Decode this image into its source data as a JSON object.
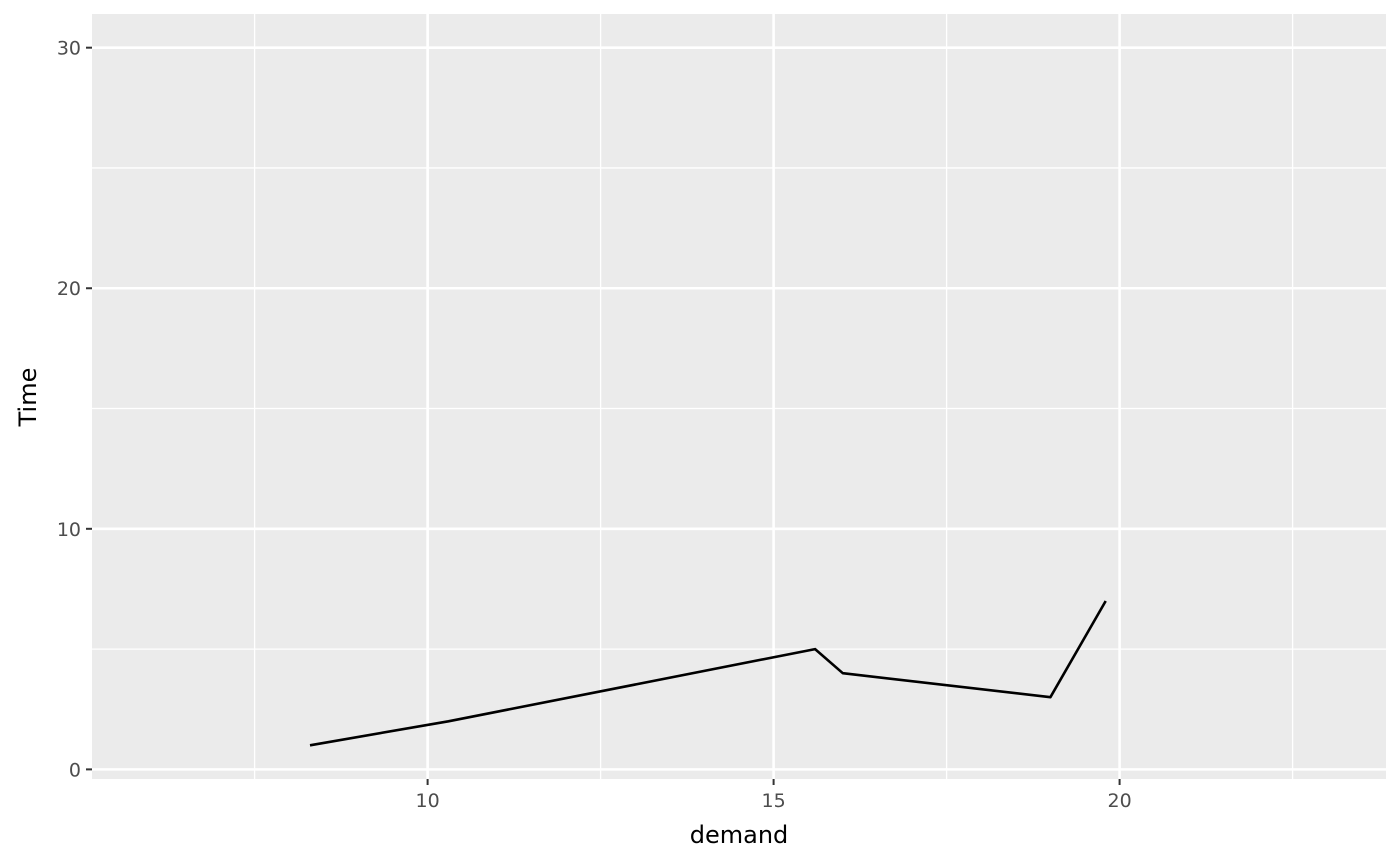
{
  "chart_data": {
    "type": "line",
    "title": "",
    "xlabel": "demand",
    "ylabel": "Time",
    "x": [
      8.3,
      10.3,
      15.6,
      16.0,
      19.0,
      19.8
    ],
    "y": [
      1,
      2,
      5,
      4,
      3,
      7
    ],
    "xlim": [
      5.15,
      23.85
    ],
    "ylim": [
      -0.4,
      31.4
    ],
    "x_ticks": [
      10,
      15,
      20
    ],
    "x_tick_labels": [
      "10",
      "15",
      "20"
    ],
    "x_minor_ticks": [
      7.5,
      12.5,
      17.5,
      22.5
    ],
    "y_ticks": [
      0,
      10,
      20,
      30
    ],
    "y_tick_labels": [
      "0",
      "10",
      "20",
      "30"
    ],
    "y_minor_ticks": [
      5,
      15,
      25
    ],
    "grid": true,
    "colors": {
      "panel": "#ebebeb",
      "grid": "#ffffff",
      "line": "#000000",
      "tick": "#333333"
    }
  }
}
